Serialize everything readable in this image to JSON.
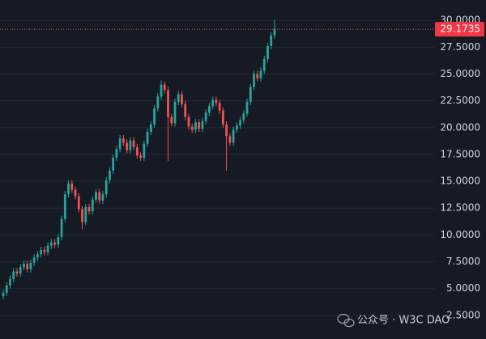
{
  "chart_data": {
    "type": "candlestick",
    "categories": [
      null,
      null,
      null,
      null,
      null,
      null,
      null,
      null,
      null,
      null,
      null,
      null,
      null,
      null,
      null,
      null,
      null,
      null,
      null,
      null,
      null,
      null,
      null,
      null,
      null,
      null,
      null,
      null,
      null,
      null,
      null,
      null,
      null,
      null,
      null,
      null,
      null,
      null,
      null,
      null,
      null,
      null,
      null,
      null,
      null,
      null,
      null,
      null,
      null,
      null,
      null,
      null,
      null,
      null,
      null,
      null,
      null,
      null,
      null,
      null,
      null,
      null,
      null,
      null,
      null,
      null,
      null,
      null,
      null,
      null,
      null,
      null,
      null,
      null,
      null,
      null,
      null,
      null,
      null,
      null
    ],
    "open": [
      4.3,
      4.6,
      5.3,
      5.9,
      6.6,
      6.4,
      7.0,
      7.3,
      6.8,
      7.4,
      7.9,
      8.2,
      8.6,
      8.4,
      9.0,
      9.3,
      9.1,
      9.8,
      11.5,
      13.8,
      14.8,
      14.2,
      13.6,
      12.4,
      11.2,
      12.6,
      12.2,
      13.3,
      14.0,
      13.2,
      13.8,
      15.1,
      16.0,
      17.2,
      18.0,
      19.0,
      18.6,
      17.9,
      18.8,
      18.2,
      17.4,
      17.2,
      18.5,
      19.6,
      20.3,
      21.8,
      22.9,
      24.0,
      23.5,
      21.0,
      20.4,
      22.4,
      23.1,
      22.2,
      21.0,
      20.1,
      19.8,
      20.5,
      19.9,
      20.6,
      21.4,
      22.0,
      22.6,
      22.3,
      21.6,
      20.3,
      19.2,
      18.6,
      19.8,
      20.2,
      20.7,
      21.3,
      22.4,
      23.8,
      25.0,
      24.6,
      25.3,
      26.4,
      27.6,
      28.6
    ],
    "high": [
      4.9,
      5.6,
      6.2,
      6.9,
      6.9,
      7.3,
      7.6,
      7.6,
      7.7,
      8.2,
      8.5,
      8.9,
      8.9,
      9.3,
      9.6,
      9.6,
      10.1,
      11.8,
      14.1,
      15.1,
      15.1,
      14.5,
      13.9,
      12.7,
      12.9,
      12.9,
      13.6,
      14.3,
      14.3,
      14.1,
      15.4,
      16.3,
      17.5,
      18.3,
      19.3,
      19.3,
      18.9,
      19.1,
      19.1,
      18.5,
      17.7,
      18.8,
      19.9,
      20.6,
      22.1,
      23.2,
      24.4,
      24.3,
      23.8,
      21.3,
      22.7,
      23.4,
      23.4,
      22.5,
      21.3,
      20.4,
      20.8,
      20.8,
      20.9,
      21.7,
      22.3,
      22.9,
      22.9,
      22.6,
      21.9,
      20.6,
      19.5,
      20.1,
      20.5,
      21.0,
      21.6,
      22.7,
      24.1,
      25.3,
      25.3,
      25.6,
      26.7,
      27.9,
      28.9,
      30.0
    ],
    "low": [
      4.0,
      4.3,
      5.0,
      5.6,
      6.1,
      6.1,
      6.7,
      6.5,
      6.5,
      7.1,
      7.6,
      7.9,
      8.1,
      8.1,
      8.7,
      8.8,
      8.8,
      9.5,
      11.2,
      13.5,
      13.9,
      13.3,
      12.1,
      10.5,
      10.9,
      11.9,
      11.9,
      13.0,
      12.9,
      12.9,
      13.5,
      14.8,
      15.7,
      16.9,
      17.7,
      18.3,
      17.6,
      17.6,
      17.9,
      17.1,
      16.9,
      16.9,
      18.2,
      19.3,
      20.0,
      21.5,
      22.6,
      23.2,
      16.9,
      20.1,
      20.1,
      22.1,
      21.9,
      20.7,
      19.8,
      19.5,
      19.5,
      19.6,
      19.6,
      20.3,
      21.1,
      21.7,
      22.0,
      21.3,
      20.0,
      16.0,
      18.3,
      18.3,
      19.5,
      19.9,
      20.4,
      21.0,
      22.1,
      23.5,
      24.3,
      24.3,
      25.0,
      26.1,
      27.3,
      28.3
    ],
    "close": [
      4.6,
      5.3,
      5.9,
      6.6,
      6.4,
      7.0,
      7.3,
      6.8,
      7.4,
      7.9,
      8.2,
      8.6,
      8.4,
      9.0,
      9.3,
      9.1,
      9.8,
      11.5,
      13.8,
      14.8,
      14.2,
      13.6,
      12.4,
      11.2,
      12.6,
      12.2,
      13.3,
      14.0,
      13.2,
      13.8,
      15.1,
      16.0,
      17.2,
      18.0,
      19.0,
      18.6,
      17.9,
      18.8,
      18.2,
      17.4,
      17.2,
      18.5,
      19.6,
      20.3,
      21.8,
      22.9,
      24.0,
      23.5,
      21.0,
      20.4,
      22.4,
      23.1,
      22.2,
      21.0,
      20.1,
      19.8,
      20.5,
      19.9,
      20.6,
      21.4,
      22.0,
      22.6,
      22.3,
      21.6,
      20.3,
      19.2,
      18.6,
      19.8,
      20.2,
      20.7,
      21.3,
      22.4,
      23.8,
      25.0,
      24.6,
      25.3,
      26.4,
      27.6,
      28.6,
      29.1735
    ],
    "ylim": [
      0.3,
      31.9
    ],
    "yticks": [
      {
        "value": 2.5,
        "label": "2.5000"
      },
      {
        "value": 5,
        "label": "5.0000"
      },
      {
        "value": 7.5,
        "label": "7.5000"
      },
      {
        "value": 10,
        "label": "10.0000"
      },
      {
        "value": 12.5,
        "label": "12.5000"
      },
      {
        "value": 15,
        "label": "15.0000"
      },
      {
        "value": 17.5,
        "label": "17.5000"
      },
      {
        "value": 20,
        "label": "20.0000"
      },
      {
        "value": 22.5,
        "label": "22.5000"
      },
      {
        "value": 25,
        "label": "25.0000"
      },
      {
        "value": 27.5,
        "label": "27.5000"
      },
      {
        "value": 30,
        "label": "30.0000"
      }
    ],
    "up_color": "#26a69a",
    "down_color": "#ef5350",
    "grid": true
  },
  "watermark": "公众号 · W3C DAO"
}
